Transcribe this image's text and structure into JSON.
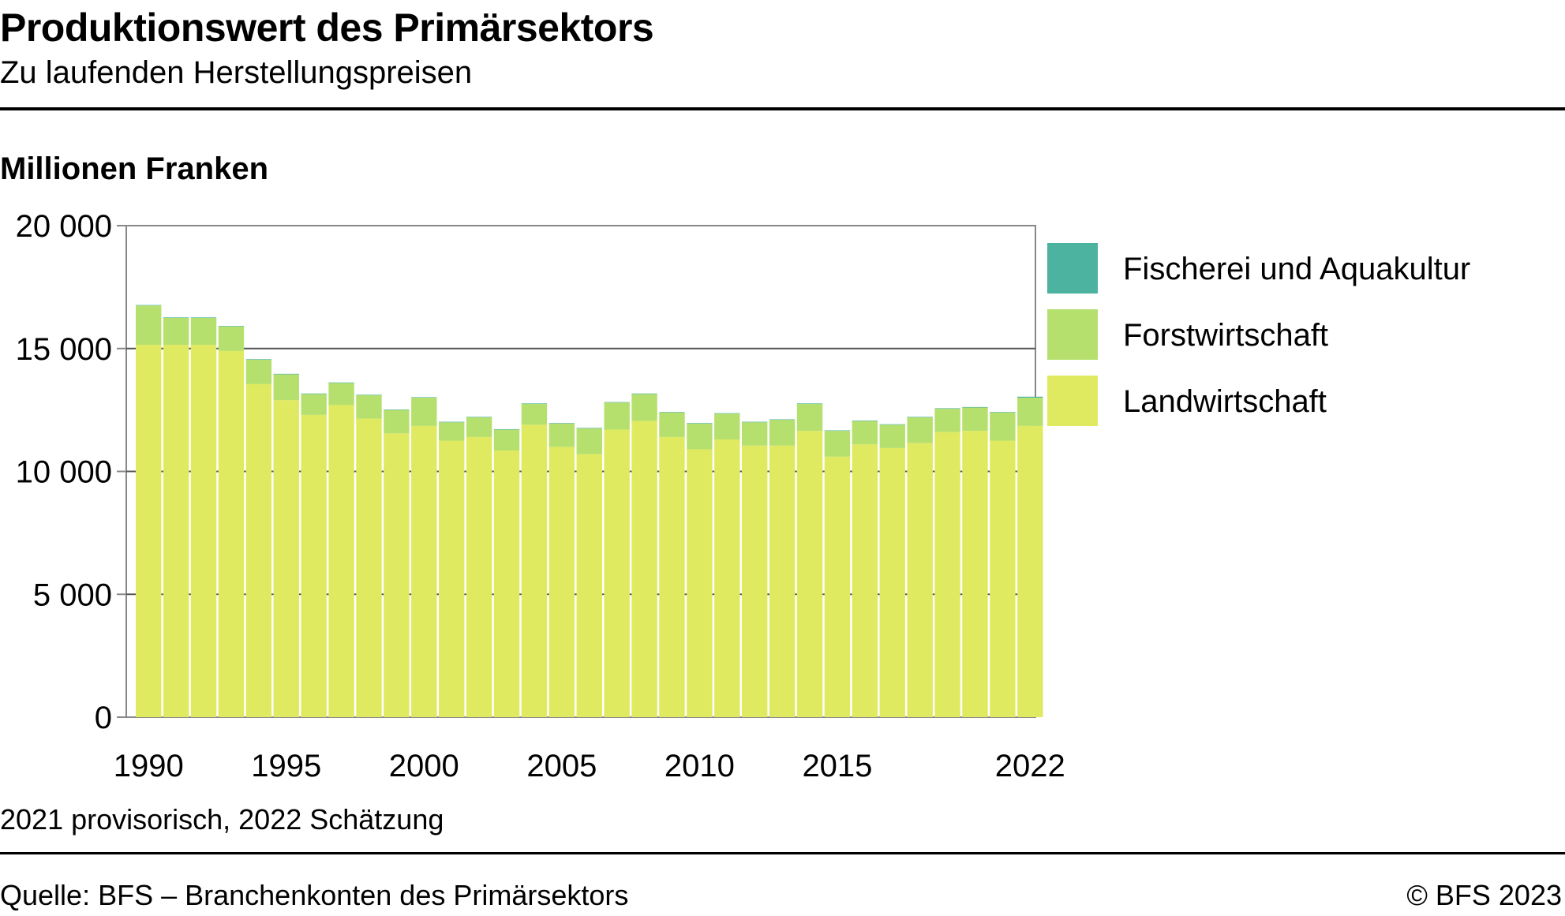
{
  "header": {
    "title": "Produktionswert des Primärsektors",
    "subtitle": "Zu laufenden Herstellungspreisen",
    "unit_label": "Millionen Franken"
  },
  "footer": {
    "note": "2021 provisorisch, 2022 Schätzung",
    "source": "Quelle: BFS – Branchenkonten des Primärsektors",
    "copyright": "© BFS 2023"
  },
  "colors": {
    "Landwirtschaft": "#e0ea60",
    "Forstwirtschaft": "#b6e06e",
    "Fischerei und Aquakultur": "#4bb3a0",
    "gridline": "#555555",
    "axis": "#888888"
  },
  "chart_data": {
    "type": "bar",
    "stacked": true,
    "title": "Produktionswert des Primärsektors",
    "subtitle": "Zu laufenden Herstellungspreisen",
    "ylabel": "Millionen Franken",
    "xlabel": "",
    "ylim": [
      0,
      20000
    ],
    "yticks": [
      0,
      5000,
      10000,
      15000,
      20000
    ],
    "ytick_labels": [
      "0",
      "5 000",
      "10 000",
      "15 000",
      "20 000"
    ],
    "xtick_labels": [
      "1990",
      "1995",
      "2000",
      "2005",
      "2010",
      "2015",
      "2022"
    ],
    "grid": "horizontal",
    "legend": "right",
    "categories": [
      "1990",
      "1991",
      "1992",
      "1993",
      "1994",
      "1995",
      "1996",
      "1997",
      "1998",
      "1999",
      "2000",
      "2001",
      "2002",
      "2003",
      "2004",
      "2005",
      "2006",
      "2007",
      "2008",
      "2009",
      "2010",
      "2011",
      "2012",
      "2013",
      "2014",
      "2015",
      "2016",
      "2017",
      "2018",
      "2019",
      "2020",
      "2021",
      "2022"
    ],
    "series": [
      {
        "name": "Landwirtschaft",
        "values": [
          15150,
          15150,
          15150,
          14900,
          13550,
          12900,
          12300,
          12700,
          12150,
          11550,
          11850,
          11250,
          11400,
          10850,
          11900,
          11000,
          10700,
          11700,
          12050,
          11400,
          10900,
          11300,
          11050,
          11050,
          11650,
          10600,
          11100,
          10950,
          11150,
          11600,
          11650,
          11250,
          11850
        ]
      },
      {
        "name": "Forstwirtschaft",
        "values": [
          1600,
          1100,
          1100,
          1000,
          1000,
          1050,
          850,
          900,
          950,
          950,
          1150,
          750,
          800,
          850,
          850,
          950,
          1050,
          1100,
          1100,
          1000,
          1050,
          1050,
          950,
          1050,
          1100,
          1050,
          950,
          950,
          1050,
          950,
          950,
          1150,
          1150
        ]
      },
      {
        "name": "Fischerei und Aquakultur",
        "values": [
          20,
          20,
          20,
          20,
          20,
          20,
          20,
          20,
          20,
          20,
          20,
          20,
          20,
          20,
          20,
          20,
          20,
          20,
          20,
          20,
          20,
          20,
          20,
          20,
          20,
          20,
          20,
          20,
          20,
          20,
          20,
          20,
          40
        ]
      }
    ]
  }
}
